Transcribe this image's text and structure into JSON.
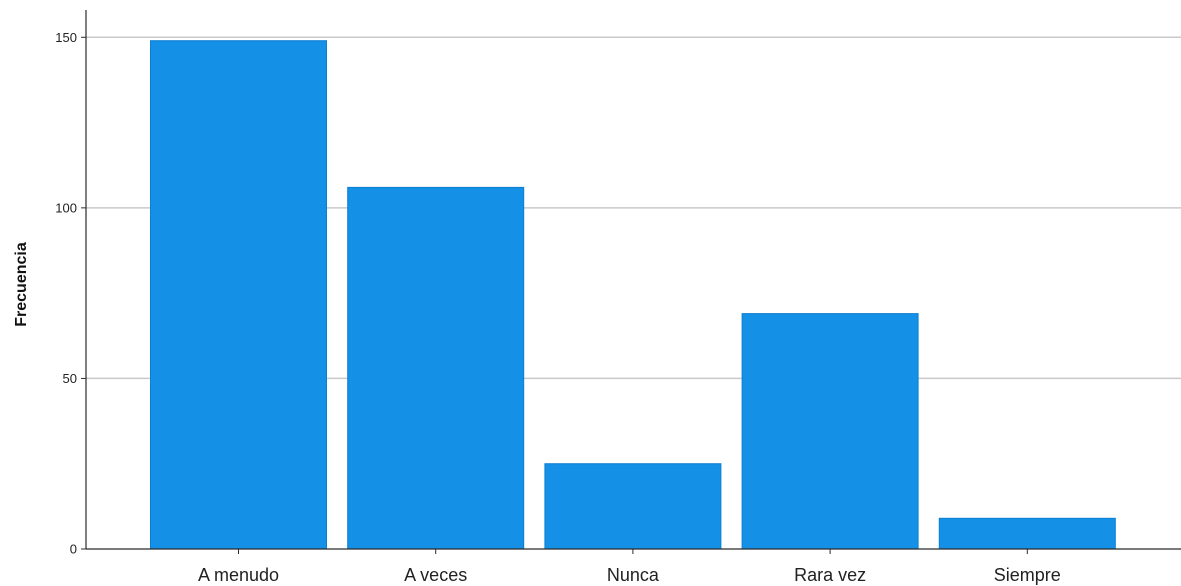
{
  "colors": {
    "bar": "#1490e6",
    "bar_edge": "#0d7fcf",
    "grid": "#c9c9c9",
    "axis": "#2b2b2b",
    "background": "#ffffff"
  },
  "chart_data": {
    "type": "bar",
    "categories": [
      "A menudo",
      "A veces",
      "Nunca",
      "Rara vez",
      "Siempre"
    ],
    "values": [
      149,
      106,
      25,
      69,
      9
    ],
    "title": "",
    "xlabel": "",
    "ylabel": "Frecuencia",
    "ylim": [
      0,
      158
    ],
    "yticks": [
      0,
      50,
      100,
      150
    ],
    "ytick_labels": [
      "0",
      "50",
      "100",
      "150"
    ],
    "grid": true,
    "legend": "none"
  }
}
